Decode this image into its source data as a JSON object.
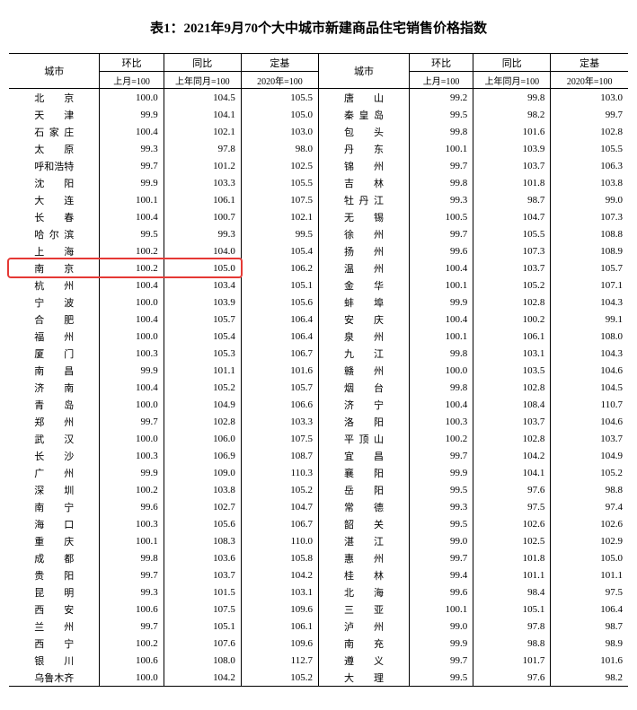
{
  "title": "表1：2021年9月70个大中城市新建商品住宅销售价格指数",
  "header": {
    "city": "城市",
    "mom": "环比",
    "yoy": "同比",
    "base": "定基",
    "mom_sub": "上月=100",
    "yoy_sub": "上年同月=100",
    "base_sub": "2020年=100"
  },
  "highlight_row_index": 10,
  "highlight_color": "#e53935",
  "rows": [
    {
      "l": {
        "c": "北　京",
        "m": "100.0",
        "y": "104.5",
        "b": "105.5"
      },
      "r": {
        "c": "唐　山",
        "m": "99.2",
        "y": "99.8",
        "b": "103.0"
      }
    },
    {
      "l": {
        "c": "天　津",
        "m": "99.9",
        "y": "104.1",
        "b": "105.0"
      },
      "r": {
        "c": "秦皇岛",
        "m": "99.5",
        "y": "98.2",
        "b": "99.7"
      }
    },
    {
      "l": {
        "c": "石家庄",
        "m": "100.4",
        "y": "102.1",
        "b": "103.0"
      },
      "r": {
        "c": "包　头",
        "m": "99.8",
        "y": "101.6",
        "b": "102.8"
      }
    },
    {
      "l": {
        "c": "太　原",
        "m": "99.3",
        "y": "97.8",
        "b": "98.0"
      },
      "r": {
        "c": "丹　东",
        "m": "100.1",
        "y": "103.9",
        "b": "105.5"
      }
    },
    {
      "l": {
        "c": "呼和浩特",
        "m": "99.7",
        "y": "101.2",
        "b": "102.5"
      },
      "r": {
        "c": "锦　州",
        "m": "99.7",
        "y": "103.7",
        "b": "106.3"
      }
    },
    {
      "l": {
        "c": "沈　阳",
        "m": "99.9",
        "y": "103.3",
        "b": "105.5"
      },
      "r": {
        "c": "吉　林",
        "m": "99.8",
        "y": "101.8",
        "b": "103.8"
      }
    },
    {
      "l": {
        "c": "大　连",
        "m": "100.1",
        "y": "106.1",
        "b": "107.5"
      },
      "r": {
        "c": "牡丹江",
        "m": "99.3",
        "y": "98.7",
        "b": "99.0"
      }
    },
    {
      "l": {
        "c": "长　春",
        "m": "100.4",
        "y": "100.7",
        "b": "102.1"
      },
      "r": {
        "c": "无　锡",
        "m": "100.5",
        "y": "104.7",
        "b": "107.3"
      }
    },
    {
      "l": {
        "c": "哈尔滨",
        "m": "99.5",
        "y": "99.3",
        "b": "99.5"
      },
      "r": {
        "c": "徐　州",
        "m": "99.7",
        "y": "105.5",
        "b": "108.8"
      }
    },
    {
      "l": {
        "c": "上　海",
        "m": "100.2",
        "y": "104.0",
        "b": "105.4"
      },
      "r": {
        "c": "扬　州",
        "m": "99.6",
        "y": "107.3",
        "b": "108.9"
      }
    },
    {
      "l": {
        "c": "南　京",
        "m": "100.2",
        "y": "105.0",
        "b": "106.2"
      },
      "r": {
        "c": "温　州",
        "m": "100.4",
        "y": "103.7",
        "b": "105.7"
      }
    },
    {
      "l": {
        "c": "杭　州",
        "m": "100.4",
        "y": "103.4",
        "b": "105.1"
      },
      "r": {
        "c": "金　华",
        "m": "100.1",
        "y": "105.2",
        "b": "107.1"
      }
    },
    {
      "l": {
        "c": "宁　波",
        "m": "100.0",
        "y": "103.9",
        "b": "105.6"
      },
      "r": {
        "c": "蚌　埠",
        "m": "99.9",
        "y": "102.8",
        "b": "104.3"
      }
    },
    {
      "l": {
        "c": "合　肥",
        "m": "100.4",
        "y": "105.7",
        "b": "106.4"
      },
      "r": {
        "c": "安　庆",
        "m": "100.4",
        "y": "100.2",
        "b": "99.1"
      }
    },
    {
      "l": {
        "c": "福　州",
        "m": "100.0",
        "y": "105.4",
        "b": "106.4"
      },
      "r": {
        "c": "泉　州",
        "m": "100.1",
        "y": "106.1",
        "b": "108.0"
      }
    },
    {
      "l": {
        "c": "厦　门",
        "m": "100.3",
        "y": "105.3",
        "b": "106.7"
      },
      "r": {
        "c": "九　江",
        "m": "99.8",
        "y": "103.1",
        "b": "104.3"
      }
    },
    {
      "l": {
        "c": "南　昌",
        "m": "99.9",
        "y": "101.1",
        "b": "101.6"
      },
      "r": {
        "c": "赣　州",
        "m": "100.0",
        "y": "103.5",
        "b": "104.6"
      }
    },
    {
      "l": {
        "c": "济　南",
        "m": "100.4",
        "y": "105.2",
        "b": "105.7"
      },
      "r": {
        "c": "烟　台",
        "m": "99.8",
        "y": "102.8",
        "b": "104.5"
      }
    },
    {
      "l": {
        "c": "青　岛",
        "m": "100.0",
        "y": "104.9",
        "b": "106.6"
      },
      "r": {
        "c": "济　宁",
        "m": "100.4",
        "y": "108.4",
        "b": "110.7"
      }
    },
    {
      "l": {
        "c": "郑　州",
        "m": "99.7",
        "y": "102.8",
        "b": "103.3"
      },
      "r": {
        "c": "洛　阳",
        "m": "100.3",
        "y": "103.7",
        "b": "104.6"
      }
    },
    {
      "l": {
        "c": "武　汉",
        "m": "100.0",
        "y": "106.0",
        "b": "107.5"
      },
      "r": {
        "c": "平顶山",
        "m": "100.2",
        "y": "102.8",
        "b": "103.7"
      }
    },
    {
      "l": {
        "c": "长　沙",
        "m": "100.3",
        "y": "106.9",
        "b": "108.7"
      },
      "r": {
        "c": "宜　昌",
        "m": "99.7",
        "y": "104.2",
        "b": "104.9"
      }
    },
    {
      "l": {
        "c": "广　州",
        "m": "99.9",
        "y": "109.0",
        "b": "110.3"
      },
      "r": {
        "c": "襄　阳",
        "m": "99.9",
        "y": "104.1",
        "b": "105.2"
      }
    },
    {
      "l": {
        "c": "深　圳",
        "m": "100.2",
        "y": "103.8",
        "b": "105.2"
      },
      "r": {
        "c": "岳　阳",
        "m": "99.5",
        "y": "97.6",
        "b": "98.8"
      }
    },
    {
      "l": {
        "c": "南　宁",
        "m": "99.6",
        "y": "102.7",
        "b": "104.7"
      },
      "r": {
        "c": "常　德",
        "m": "99.3",
        "y": "97.5",
        "b": "97.4"
      }
    },
    {
      "l": {
        "c": "海　口",
        "m": "100.3",
        "y": "105.6",
        "b": "106.7"
      },
      "r": {
        "c": "韶　关",
        "m": "99.5",
        "y": "102.6",
        "b": "102.6"
      }
    },
    {
      "l": {
        "c": "重　庆",
        "m": "100.1",
        "y": "108.3",
        "b": "110.0"
      },
      "r": {
        "c": "湛　江",
        "m": "99.0",
        "y": "102.5",
        "b": "102.9"
      }
    },
    {
      "l": {
        "c": "成　都",
        "m": "99.8",
        "y": "103.6",
        "b": "105.8"
      },
      "r": {
        "c": "惠　州",
        "m": "99.7",
        "y": "101.8",
        "b": "105.0"
      }
    },
    {
      "l": {
        "c": "贵　阳",
        "m": "99.7",
        "y": "103.7",
        "b": "104.2"
      },
      "r": {
        "c": "桂　林",
        "m": "99.4",
        "y": "101.1",
        "b": "101.1"
      }
    },
    {
      "l": {
        "c": "昆　明",
        "m": "99.3",
        "y": "101.5",
        "b": "103.1"
      },
      "r": {
        "c": "北　海",
        "m": "99.6",
        "y": "98.4",
        "b": "97.5"
      }
    },
    {
      "l": {
        "c": "西　安",
        "m": "100.6",
        "y": "107.5",
        "b": "109.6"
      },
      "r": {
        "c": "三　亚",
        "m": "100.1",
        "y": "105.1",
        "b": "106.4"
      }
    },
    {
      "l": {
        "c": "兰　州",
        "m": "99.7",
        "y": "105.1",
        "b": "106.1"
      },
      "r": {
        "c": "泸　州",
        "m": "99.0",
        "y": "97.8",
        "b": "98.7"
      }
    },
    {
      "l": {
        "c": "西　宁",
        "m": "100.2",
        "y": "107.6",
        "b": "109.6"
      },
      "r": {
        "c": "南　充",
        "m": "99.9",
        "y": "98.8",
        "b": "98.9"
      }
    },
    {
      "l": {
        "c": "银　川",
        "m": "100.6",
        "y": "108.0",
        "b": "112.7"
      },
      "r": {
        "c": "遵　义",
        "m": "99.7",
        "y": "101.7",
        "b": "101.6"
      }
    },
    {
      "l": {
        "c": "乌鲁木齐",
        "m": "100.0",
        "y": "104.2",
        "b": "105.2"
      },
      "r": {
        "c": "大　理",
        "m": "99.5",
        "y": "97.6",
        "b": "98.2"
      }
    }
  ]
}
